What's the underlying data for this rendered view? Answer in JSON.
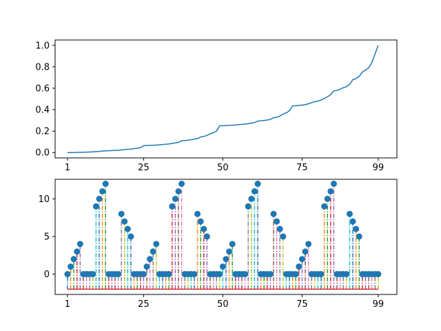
{
  "chart_data": [
    {
      "type": "line",
      "title": "",
      "xlabel": "",
      "ylabel": "",
      "xlim": [
        -3.9,
        103.9
      ],
      "ylim": [
        -0.05,
        1.05
      ],
      "x_ticks": [
        0,
        24,
        49,
        74,
        98
      ],
      "x_tick_labels": [
        "1",
        "25",
        "50",
        "75",
        "99"
      ],
      "y_ticks": [
        0.0,
        0.2,
        0.4,
        0.6,
        0.8,
        1.0
      ],
      "y_tick_labels": [
        "0.0",
        "0.2",
        "0.4",
        "0.6",
        "0.8",
        "1.0"
      ],
      "color": "#1f77b4",
      "x": [
        0,
        1,
        2,
        3,
        4,
        5,
        6,
        7,
        8,
        9,
        10,
        11,
        12,
        13,
        14,
        15,
        16,
        17,
        18,
        19,
        20,
        21,
        22,
        23,
        24,
        25,
        26,
        27,
        28,
        29,
        30,
        31,
        32,
        33,
        34,
        35,
        36,
        37,
        38,
        39,
        40,
        41,
        42,
        43,
        44,
        45,
        46,
        47,
        48,
        49,
        50,
        51,
        52,
        53,
        54,
        55,
        56,
        57,
        58,
        59,
        60,
        61,
        62,
        63,
        64,
        65,
        66,
        67,
        68,
        69,
        70,
        71,
        72,
        73,
        74,
        75,
        76,
        77,
        78,
        79,
        80,
        81,
        82,
        83,
        84,
        85,
        86,
        87,
        88,
        89,
        90,
        91,
        92,
        93,
        94,
        95,
        96,
        97,
        98
      ],
      "y": [
        0.0,
        0.0,
        0.001,
        0.002,
        0.002,
        0.003,
        0.004,
        0.005,
        0.007,
        0.009,
        0.01,
        0.014,
        0.016,
        0.017,
        0.018,
        0.02,
        0.021,
        0.025,
        0.028,
        0.03,
        0.033,
        0.037,
        0.04,
        0.045,
        0.065,
        0.066,
        0.067,
        0.068,
        0.07,
        0.072,
        0.075,
        0.078,
        0.08,
        0.085,
        0.09,
        0.095,
        0.11,
        0.112,
        0.115,
        0.12,
        0.125,
        0.13,
        0.145,
        0.15,
        0.16,
        0.175,
        0.185,
        0.2,
        0.25,
        0.25,
        0.252,
        0.253,
        0.255,
        0.257,
        0.26,
        0.263,
        0.266,
        0.27,
        0.275,
        0.28,
        0.293,
        0.296,
        0.3,
        0.303,
        0.31,
        0.325,
        0.33,
        0.34,
        0.36,
        0.37,
        0.39,
        0.435,
        0.437,
        0.44,
        0.443,
        0.447,
        0.455,
        0.465,
        0.475,
        0.48,
        0.49,
        0.505,
        0.52,
        0.54,
        0.575,
        0.58,
        0.59,
        0.605,
        0.615,
        0.635,
        0.68,
        0.69,
        0.71,
        0.75,
        0.77,
        0.79,
        0.84,
        0.92,
        1.0
      ]
    },
    {
      "type": "stem",
      "title": "",
      "xlabel": "",
      "ylabel": "",
      "xlim": [
        -3.9,
        103.9
      ],
      "ylim": [
        -2.7,
        12.6
      ],
      "baseline": -2,
      "x_ticks": [
        0,
        24,
        49,
        74,
        98
      ],
      "x_tick_labels": [
        "1",
        "25",
        "50",
        "75",
        "99"
      ],
      "y_ticks": [
        0,
        5,
        10
      ],
      "y_tick_labels": [
        "0",
        "5",
        "10"
      ],
      "marker_color": "#1f77b4",
      "baseline_color": "#d62728",
      "stem_colors": [
        "#1f77b4",
        "#ff7f0e",
        "#2ca02c",
        "#d62728",
        "#9467bd",
        "#8c564b",
        "#e377c2",
        "#7f7f7f",
        "#bcbd22",
        "#17becf"
      ],
      "x": [
        0,
        1,
        2,
        3,
        4,
        5,
        6,
        7,
        8,
        9,
        10,
        11,
        12,
        13,
        14,
        15,
        16,
        17,
        18,
        19,
        20,
        21,
        22,
        23,
        24,
        25,
        26,
        27,
        28,
        29,
        30,
        31,
        32,
        33,
        34,
        35,
        36,
        37,
        38,
        39,
        40,
        41,
        42,
        43,
        44,
        45,
        46,
        47,
        48,
        49,
        50,
        51,
        52,
        53,
        54,
        55,
        56,
        57,
        58,
        59,
        60,
        61,
        62,
        63,
        64,
        65,
        66,
        67,
        68,
        69,
        70,
        71,
        72,
        73,
        74,
        75,
        76,
        77,
        78,
        79,
        80,
        81,
        82,
        83,
        84,
        85,
        86,
        87,
        88,
        89,
        90,
        91,
        92,
        93,
        94,
        95,
        96,
        97,
        98
      ],
      "values": [
        0,
        1,
        2,
        3,
        4,
        0,
        0,
        0,
        0,
        9,
        10,
        11,
        12,
        0,
        0,
        0,
        0,
        8,
        7,
        6,
        5,
        0,
        0,
        0,
        0,
        1,
        2,
        3,
        4,
        0,
        0,
        0,
        0,
        9,
        10,
        11,
        12,
        0,
        0,
        0,
        0,
        8,
        7,
        6,
        5,
        0,
        0,
        0,
        0,
        1,
        2,
        3,
        4,
        0,
        0,
        0,
        0,
        9,
        10,
        11,
        12,
        0,
        0,
        0,
        0,
        8,
        7,
        6,
        5,
        0,
        0,
        0,
        0,
        1,
        2,
        3,
        4,
        0,
        0,
        0,
        0,
        9,
        10,
        11,
        12,
        0,
        0,
        0,
        0,
        8,
        7,
        6,
        5,
        0,
        0,
        0,
        0,
        0,
        0
      ]
    }
  ]
}
